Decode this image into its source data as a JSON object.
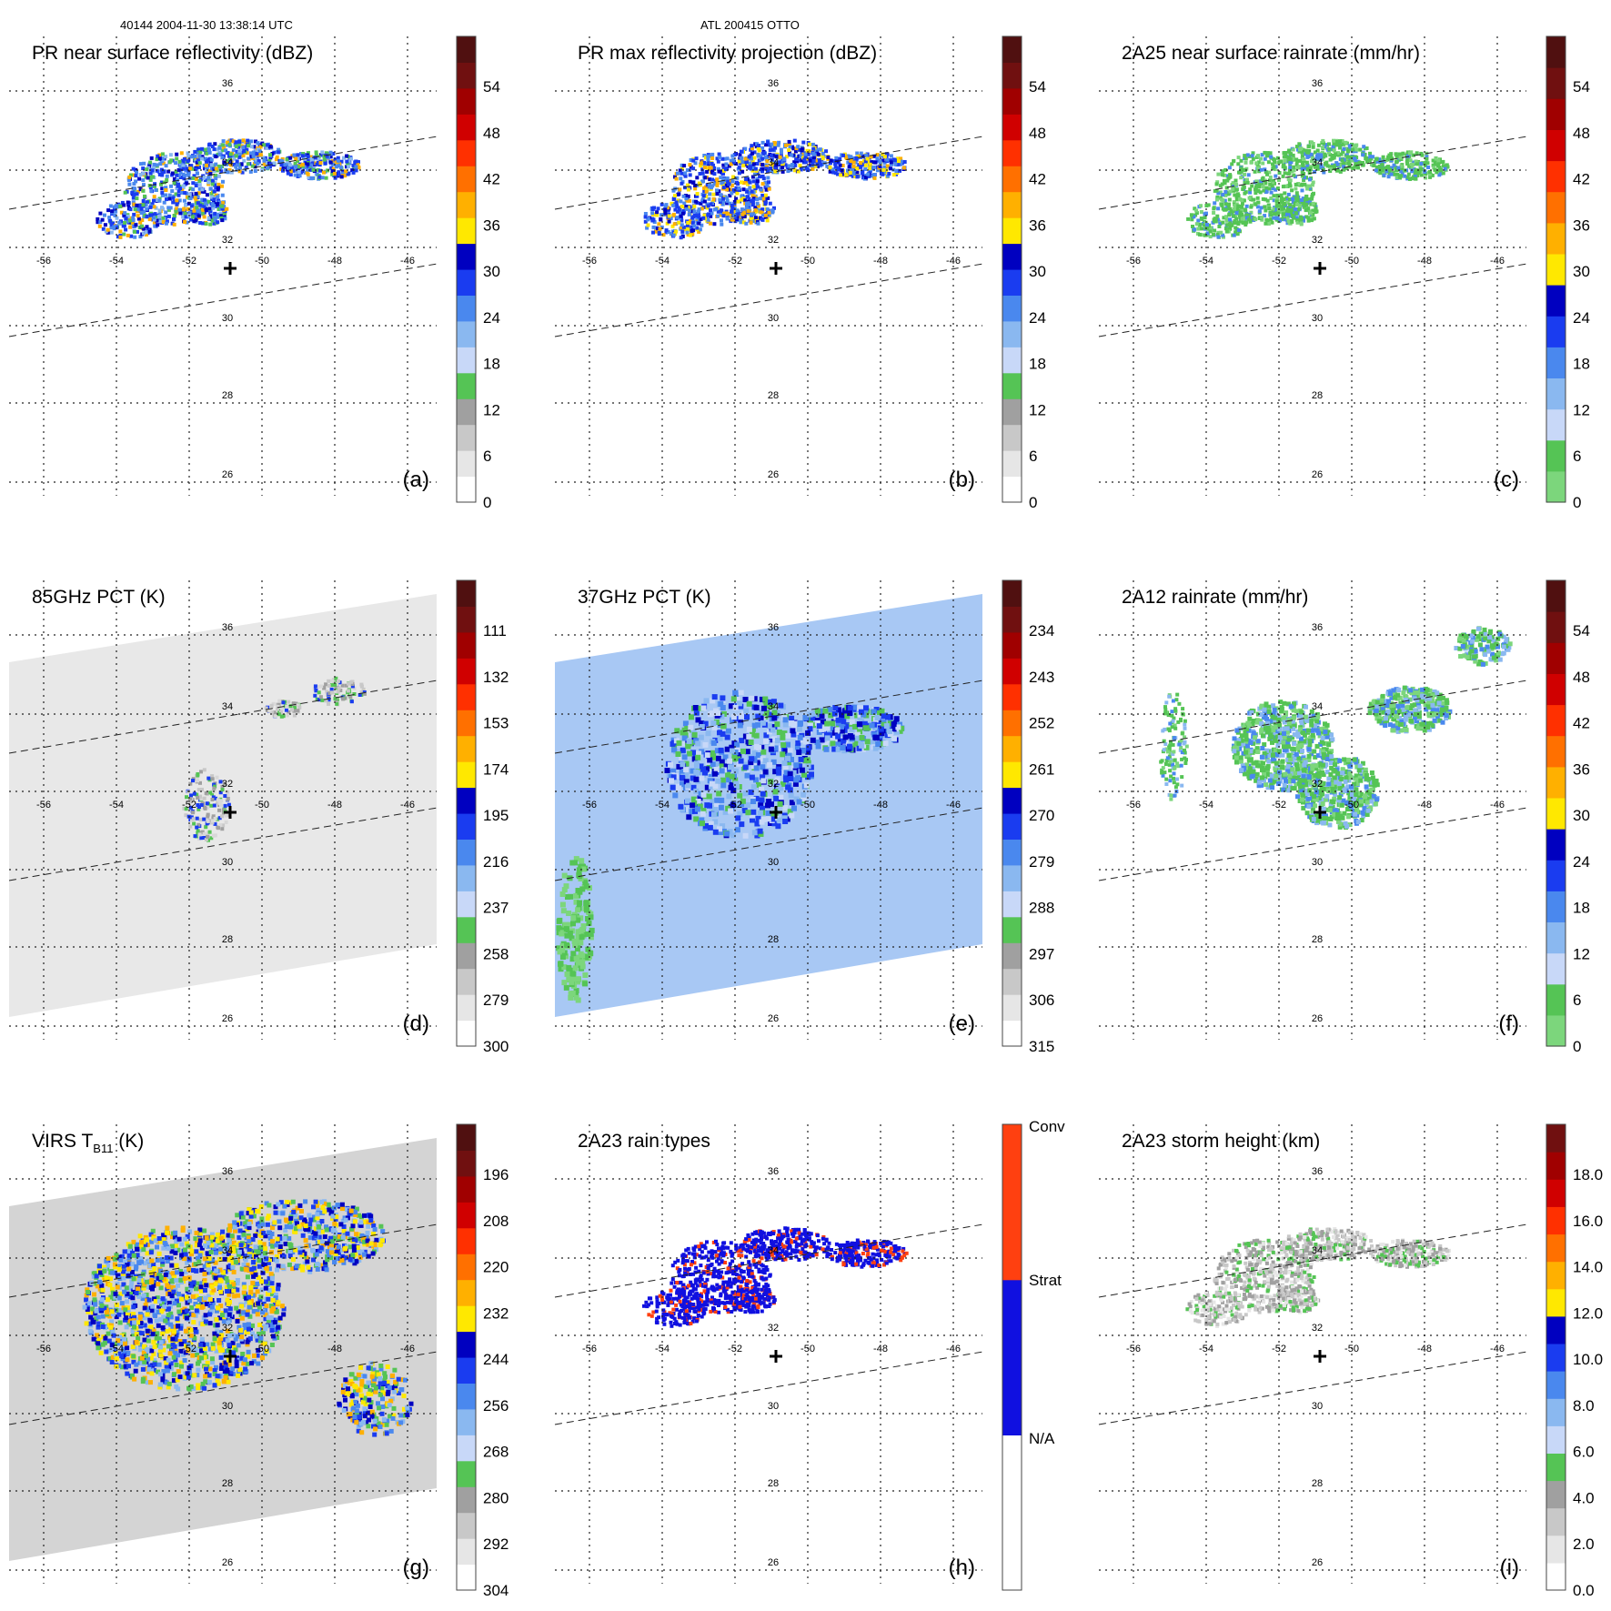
{
  "header": {
    "orbit_time": "40144 2004-11-30 13:38:14 UTC",
    "storm": "ATL 200415 OTTO"
  },
  "map": {
    "lon_labels": [
      "-56",
      "-54",
      "-52",
      "-50",
      "-48",
      "-46"
    ],
    "lat_labels": [
      "36",
      "34",
      "32",
      "30",
      "28",
      "26"
    ]
  },
  "panels": [
    {
      "id": "a",
      "title": "PR near surface reflectivity (dBZ)",
      "label": "(a)",
      "ticks": [
        "54",
        "48",
        "42",
        "36",
        "30",
        "24",
        "18",
        "12",
        "6",
        "0"
      ],
      "palette": "dbz",
      "field": "pr_surface",
      "swath": true,
      "cross": true
    },
    {
      "id": "b",
      "title": "PR max reflectivity projection (dBZ)",
      "label": "(b)",
      "ticks": [
        "54",
        "48",
        "42",
        "36",
        "30",
        "24",
        "18",
        "12",
        "6",
        "0"
      ],
      "palette": "dbz",
      "field": "pr_max",
      "swath": true,
      "cross": true
    },
    {
      "id": "c",
      "title": "2A25 near surface rainrate (mm/hr)",
      "label": "(c)",
      "ticks": [
        "54",
        "48",
        "42",
        "36",
        "30",
        "24",
        "18",
        "12",
        "6",
        "0"
      ],
      "palette": "rain",
      "field": "rain_2a25",
      "swath": true,
      "cross": true
    },
    {
      "id": "d",
      "title": "85GHz PCT (K)",
      "label": "(d)",
      "ticks": [
        "111",
        "132",
        "153",
        "174",
        "195",
        "216",
        "237",
        "258",
        "279",
        "300"
      ],
      "palette": "dbz",
      "field": "pct85",
      "swath": true,
      "cross": true
    },
    {
      "id": "e",
      "title": "37GHz PCT (K)",
      "label": "(e)",
      "ticks": [
        "234",
        "243",
        "252",
        "261",
        "270",
        "279",
        "288",
        "297",
        "306",
        "315"
      ],
      "palette": "dbz",
      "field": "pct37",
      "swath": true,
      "cross": true
    },
    {
      "id": "f",
      "title": "2A12 rainrate (mm/hr)",
      "label": "(f)",
      "ticks": [
        "54",
        "48",
        "42",
        "36",
        "30",
        "24",
        "18",
        "12",
        "6",
        "0"
      ],
      "palette": "rain",
      "field": "rain_2a12",
      "swath": true,
      "cross": true
    },
    {
      "id": "g",
      "title": "VIRS T",
      "title_sub": "B11",
      "title_tail": " (K)",
      "label": "(g)",
      "ticks": [
        "196",
        "208",
        "220",
        "232",
        "244",
        "256",
        "268",
        "280",
        "292",
        "304"
      ],
      "palette": "dbz",
      "field": "virs",
      "swath": true,
      "cross": true
    },
    {
      "id": "h",
      "title": "2A23 rain types",
      "label": "(h)",
      "ticks": [
        "Conv",
        "Strat",
        "N/A"
      ],
      "palette": "types",
      "field": "types",
      "swath": true,
      "cross": true
    },
    {
      "id": "i",
      "title": "2A23 storm height (km)",
      "label": "(i)",
      "ticks": [
        "18.0",
        "16.0",
        "14.0",
        "12.0",
        "10.0",
        "8.0",
        "6.0",
        "4.0",
        "2.0",
        "0.0"
      ],
      "palette": "height",
      "field": "height",
      "swath": true,
      "cross": true
    }
  ],
  "palettes": {
    "dbz": [
      "#ffffff",
      "#e6e6e6",
      "#c8c8c8",
      "#a0a0a0",
      "#55c455",
      "#c8d8f8",
      "#8ab8f0",
      "#4a88ee",
      "#1a3cf0",
      "#0000c0",
      "#ffe800",
      "#ffb000",
      "#ff7000",
      "#ff3000",
      "#d00000",
      "#a00000",
      "#701010",
      "#501010"
    ],
    "rain": [
      "#7cd67c",
      "#55c455",
      "#c8d8f8",
      "#8ab8f0",
      "#4a88ee",
      "#1a3cf0",
      "#0000c0",
      "#ffe800",
      "#ffb000",
      "#ff7000",
      "#ff3000",
      "#d00000",
      "#a00000",
      "#701010",
      "#501010"
    ],
    "types": [
      "#ffffff",
      "#1010e0",
      "#ff4010"
    ],
    "height": [
      "#ffffff",
      "#e6e6e6",
      "#c8c8c8",
      "#a0a0a0",
      "#55c455",
      "#c8d8f8",
      "#8ab8f0",
      "#4a88ee",
      "#1a3cf0",
      "#0000c0",
      "#ffe800",
      "#ffb000",
      "#ff7000",
      "#ff3000",
      "#d00000",
      "#a00000",
      "#701010"
    ]
  }
}
